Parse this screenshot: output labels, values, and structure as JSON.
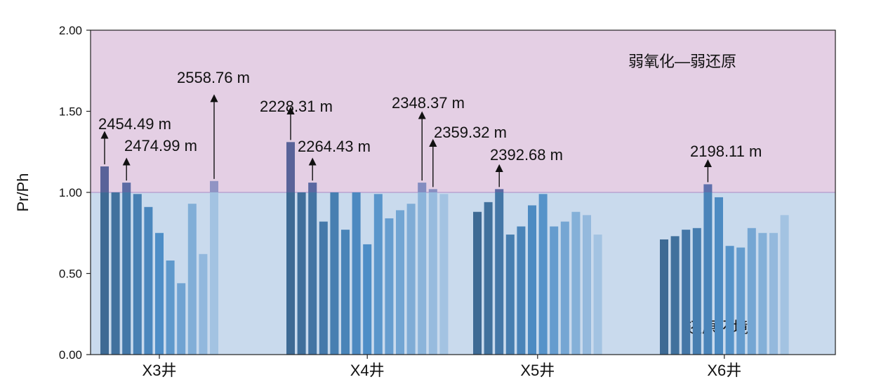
{
  "chart_data": {
    "type": "bar",
    "ylabel": "Pr/Ph",
    "ylim": [
      0,
      2
    ],
    "yticks": [
      "0.00",
      "0.50",
      "1.00",
      "1.50",
      "2.00"
    ],
    "zones": [
      {
        "label": "弱氧化—弱还原",
        "from": 1.0,
        "to": 2.0,
        "color": "#e4cfe4"
      },
      {
        "label": "还原环境",
        "from": 0.0,
        "to": 1.0,
        "color": "#c9daed"
      }
    ],
    "groups": [
      {
        "name": "X3井",
        "values": [
          1.16,
          1.0,
          1.06,
          0.99,
          0.91,
          0.75,
          0.58,
          0.44,
          0.93,
          0.62,
          1.07
        ],
        "annotations": [
          {
            "bar": 0,
            "label": "2454.49 m"
          },
          {
            "bar": 2,
            "label": "2474.99 m"
          },
          {
            "bar": 10,
            "label": "2558.76 m"
          }
        ]
      },
      {
        "name": "X4井",
        "values": [
          1.31,
          1.0,
          1.06,
          0.82,
          1.0,
          0.77,
          1.0,
          0.68,
          0.99,
          0.84,
          0.89,
          0.93,
          1.06,
          1.02,
          0.99
        ],
        "annotations": [
          {
            "bar": 0,
            "label": "2228.31 m"
          },
          {
            "bar": 2,
            "label": "2264.43 m"
          },
          {
            "bar": 12,
            "label": "2348.37 m"
          },
          {
            "bar": 13,
            "label": "2359.32 m"
          }
        ]
      },
      {
        "name": "X5井",
        "values": [
          0.88,
          0.94,
          1.02,
          0.74,
          0.79,
          0.92,
          0.99,
          0.79,
          0.82,
          0.88,
          0.86,
          0.74
        ],
        "annotations": [
          {
            "bar": 2,
            "label": "2392.68 m"
          }
        ]
      },
      {
        "name": "X6井",
        "values": [
          0.71,
          0.73,
          0.77,
          0.78,
          1.05,
          0.97,
          0.67,
          0.66,
          0.78,
          0.75,
          0.75,
          0.86
        ],
        "annotations": [
          {
            "bar": 4,
            "label": "2198.11 m"
          }
        ]
      }
    ],
    "colors": {
      "bar_dark": "#3e6a94",
      "bar_mid": "#4e8ec7",
      "bar_light": "#a3c3e2",
      "zone_border": "#b9a3d2",
      "axis": "#222222"
    }
  }
}
